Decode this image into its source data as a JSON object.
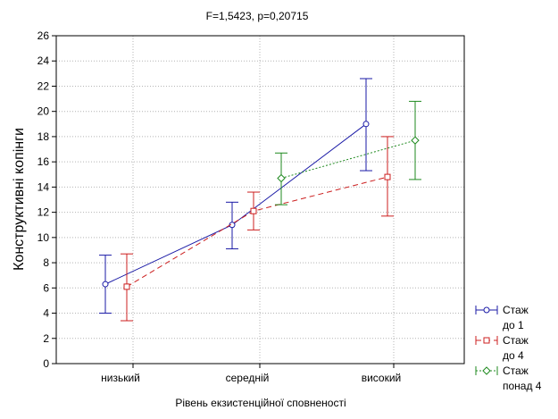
{
  "chart_data": {
    "type": "line",
    "title": "F=1,5423, p=0,20715",
    "xlabel": "Рівень екзистенційної сповненості",
    "ylabel": "Конструктивні копінги",
    "categories": [
      "низький",
      "середній",
      "високий"
    ],
    "ylim": [
      0,
      26
    ],
    "yticks": [
      0,
      2,
      4,
      6,
      8,
      10,
      12,
      14,
      16,
      18,
      20,
      22,
      24,
      26
    ],
    "grid": true,
    "legend_position": "bottom-right",
    "series": [
      {
        "name_lines": [
          "Стаж",
          "до 1"
        ],
        "color": "#1a1aa6",
        "marker": "circle",
        "line_style": "solid",
        "means": [
          6.3,
          11.0,
          19.0
        ],
        "lower": [
          4.0,
          9.1,
          15.3
        ],
        "upper": [
          8.6,
          12.8,
          22.6
        ]
      },
      {
        "name_lines": [
          "Стаж",
          "до 4"
        ],
        "color": "#cc1f1f",
        "marker": "square",
        "line_style": "dashed",
        "means": [
          6.1,
          12.1,
          14.8
        ],
        "lower": [
          3.4,
          10.6,
          11.7
        ],
        "upper": [
          8.7,
          13.6,
          18.0
        ]
      },
      {
        "name_lines": [
          "Стаж",
          "понад 4"
        ],
        "color": "#1f8a1f",
        "marker": "diamond",
        "line_style": "dotted",
        "means": [
          null,
          14.7,
          17.7
        ],
        "lower": [
          null,
          12.6,
          14.6
        ],
        "upper": [
          null,
          16.7,
          20.8
        ]
      }
    ]
  }
}
